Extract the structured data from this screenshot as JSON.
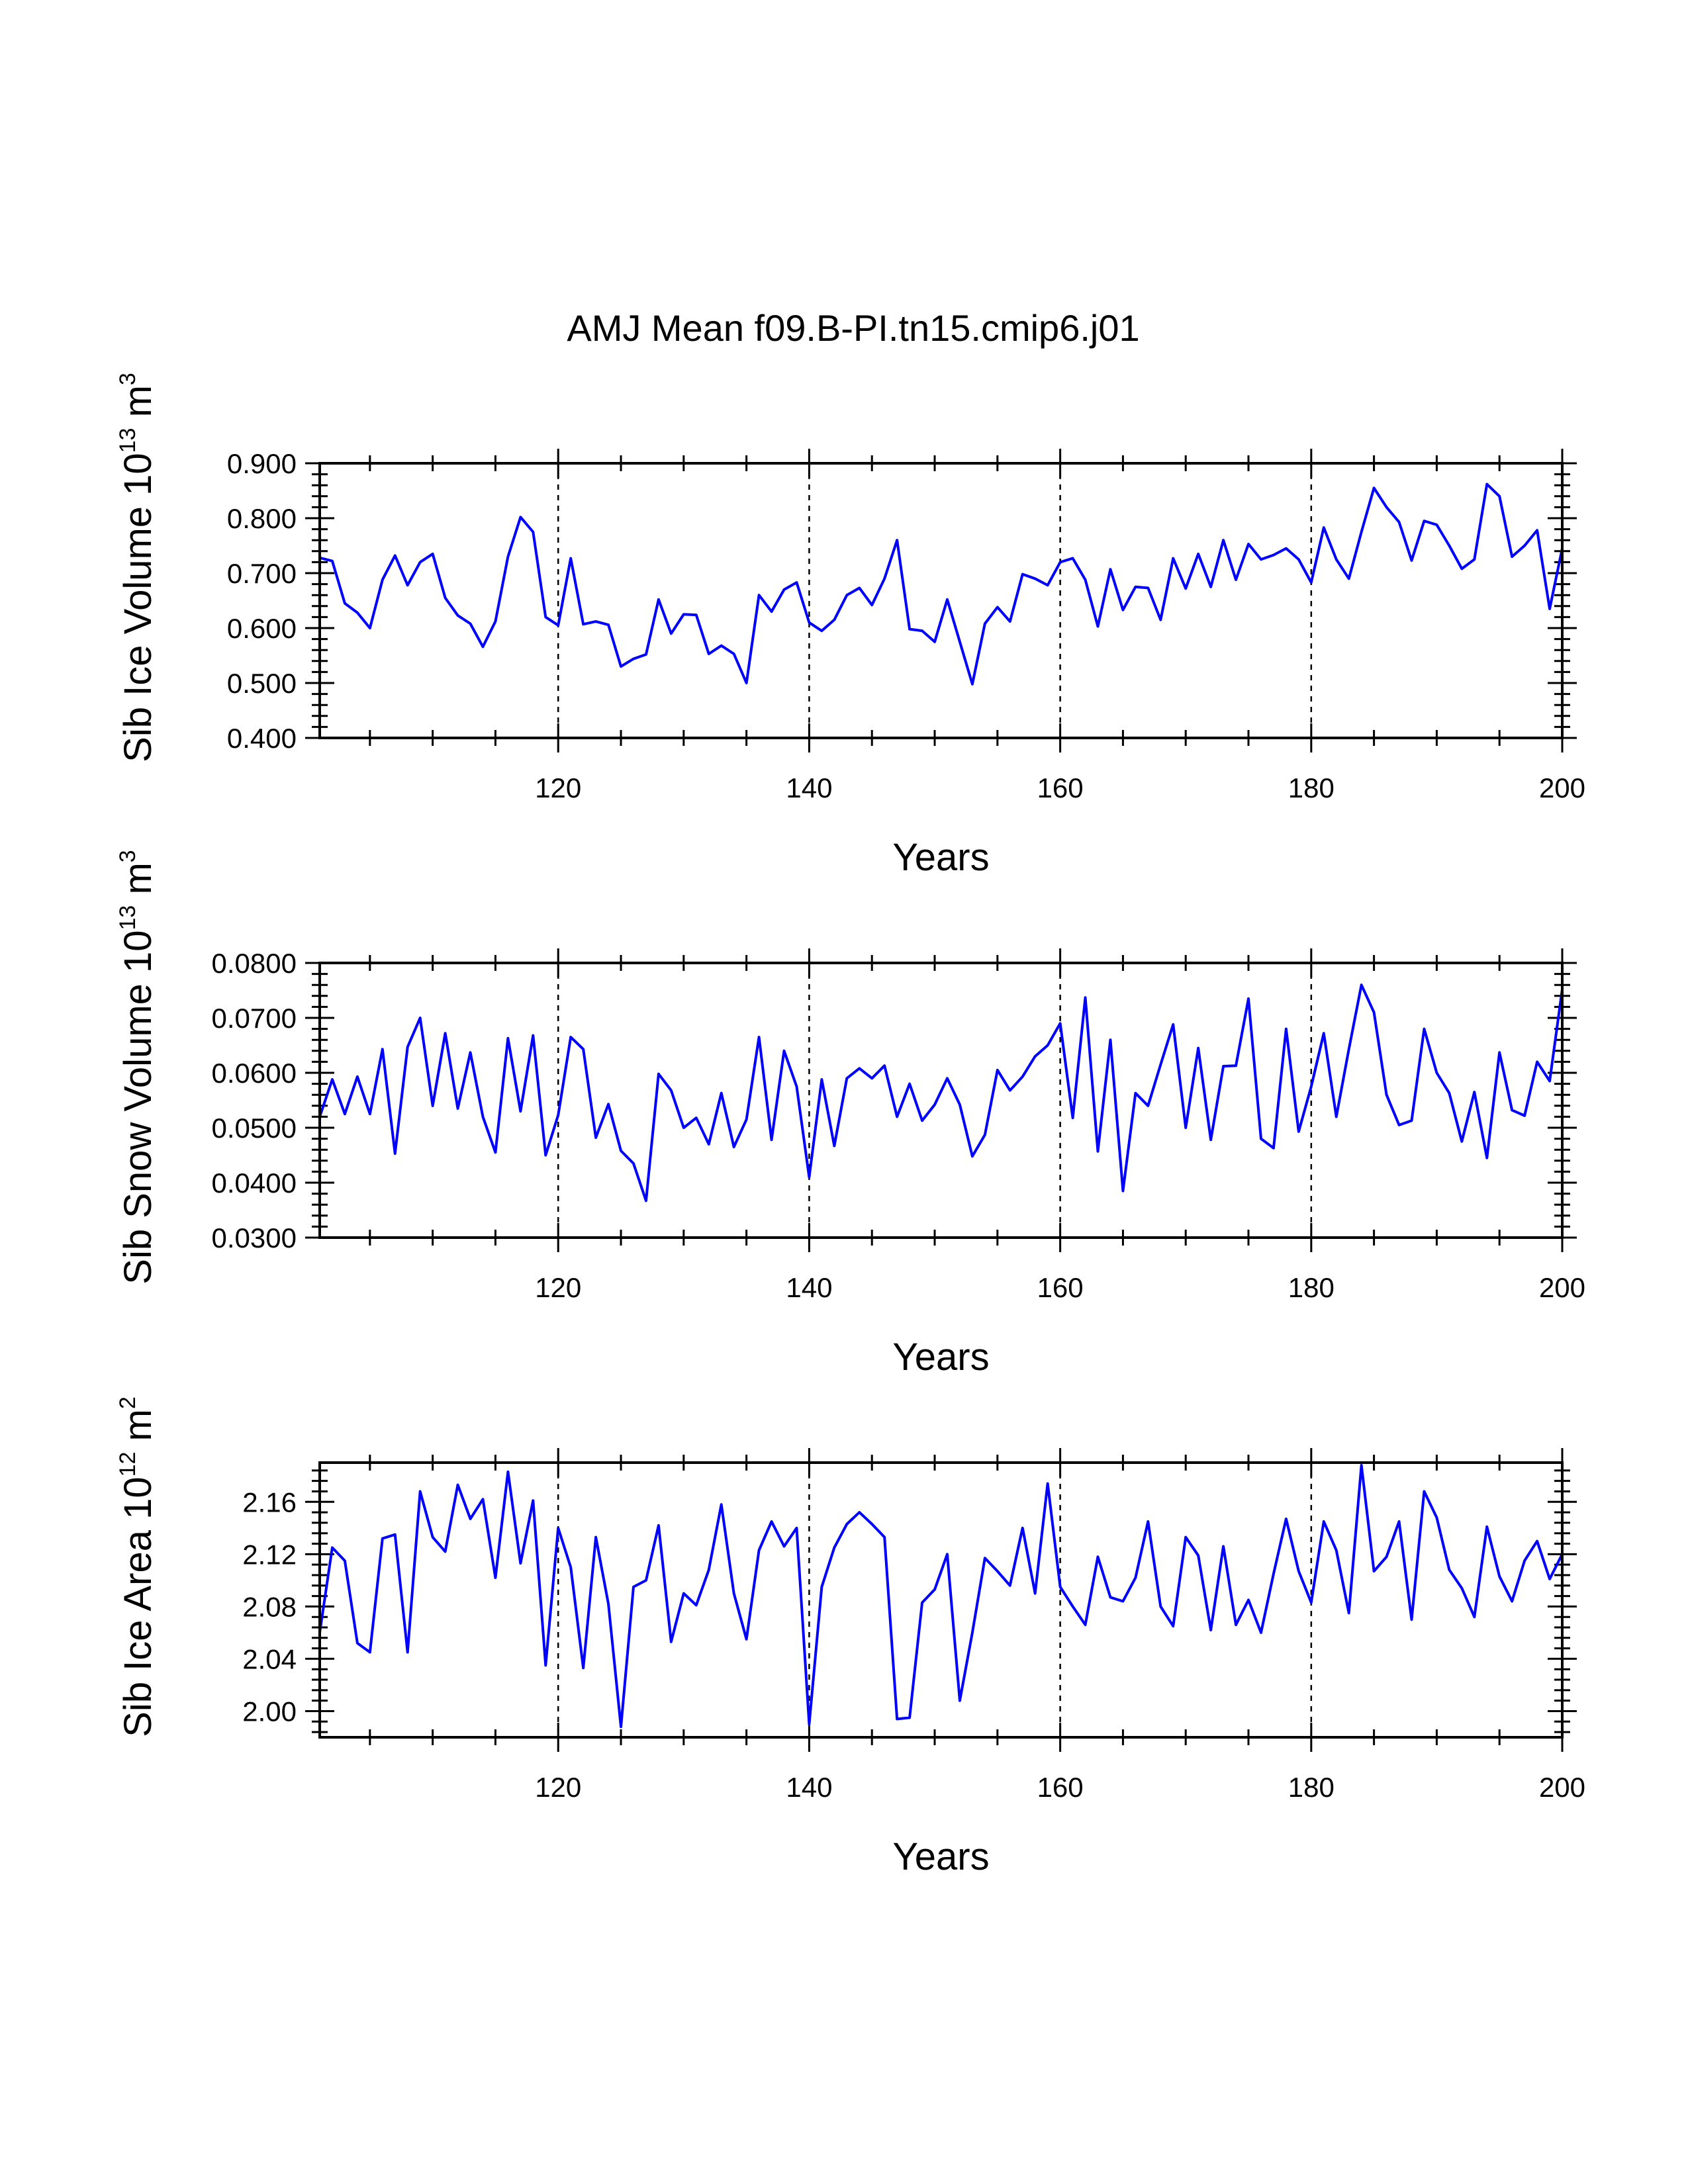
{
  "title": "AMJ Mean f09.B-PI.tn15.cmip6.j01",
  "colors": {
    "series": "#0000ff",
    "axes": "#000000",
    "background": "#ffffff"
  },
  "chart_data": [
    {
      "type": "line",
      "title": "",
      "xlabel": "Years",
      "ylabel": "Sib Ice Volume 10",
      "ylabel_exp": "13",
      "ylabel_unit": "m",
      "ylabel_unit_exp": "3",
      "xlim": [
        101,
        200
      ],
      "ylim": [
        0.4,
        0.9
      ],
      "x_ticks": [
        120,
        140,
        160,
        180,
        200
      ],
      "y_ticks": [
        0.4,
        0.5,
        0.6,
        0.7,
        0.8,
        0.9
      ],
      "y_tick_labels": [
        "0.400",
        "0.500",
        "0.600",
        "0.700",
        "0.800",
        "0.900"
      ],
      "grid_x": [
        120,
        140,
        160,
        180
      ],
      "series": [
        {
          "name": "Sib Ice Volume",
          "x_start": 101,
          "values": [
            0.728,
            0.722,
            0.645,
            0.628,
            0.6,
            0.688,
            0.732,
            0.678,
            0.72,
            0.735,
            0.655,
            0.623,
            0.608,
            0.566,
            0.612,
            0.73,
            0.802,
            0.775,
            0.62,
            0.605,
            0.727,
            0.607,
            0.612,
            0.606,
            0.53,
            0.544,
            0.552,
            0.652,
            0.59,
            0.625,
            0.624,
            0.553,
            0.568,
            0.553,
            0.5,
            0.66,
            0.63,
            0.67,
            0.683,
            0.61,
            0.595,
            0.615,
            0.66,
            0.673,
            0.642,
            0.69,
            0.76,
            0.598,
            0.595,
            0.575,
            0.652,
            0.575,
            0.498,
            0.608,
            0.638,
            0.612,
            0.698,
            0.69,
            0.678,
            0.72,
            0.727,
            0.688,
            0.603,
            0.707,
            0.633,
            0.675,
            0.673,
            0.615,
            0.727,
            0.672,
            0.735,
            0.675,
            0.76,
            0.688,
            0.753,
            0.725,
            0.733,
            0.745,
            0.725,
            0.683,
            0.783,
            0.725,
            0.69,
            0.775,
            0.855,
            0.82,
            0.793,
            0.723,
            0.795,
            0.788,
            0.75,
            0.708,
            0.725,
            0.862,
            0.84,
            0.73,
            0.75,
            0.778,
            0.635,
            0.745
          ]
        }
      ]
    },
    {
      "type": "line",
      "title": "",
      "xlabel": "Years",
      "ylabel": "Sib Snow Volume 10",
      "ylabel_exp": "13",
      "ylabel_unit": "m",
      "ylabel_unit_exp": "3",
      "xlim": [
        101,
        200
      ],
      "ylim": [
        0.03,
        0.08
      ],
      "x_ticks": [
        120,
        140,
        160,
        180,
        200
      ],
      "y_ticks": [
        0.03,
        0.04,
        0.05,
        0.06,
        0.07,
        0.08
      ],
      "y_tick_labels": [
        "0.0300",
        "0.0400",
        "0.0500",
        "0.0600",
        "0.0700",
        "0.0800"
      ],
      "grid_x": [
        120,
        140,
        160,
        180
      ],
      "series": [
        {
          "name": "Sib Snow Volume",
          "x_start": 101,
          "values": [
            0.052,
            0.0588,
            0.0525,
            0.0593,
            0.0525,
            0.0643,
            0.0453,
            0.0647,
            0.07,
            0.054,
            0.0672,
            0.0535,
            0.0637,
            0.052,
            0.0455,
            0.0663,
            0.053,
            0.0668,
            0.045,
            0.0523,
            0.0665,
            0.0643,
            0.0482,
            0.0543,
            0.0458,
            0.0435,
            0.0367,
            0.0598,
            0.0568,
            0.05,
            0.0518,
            0.047,
            0.0563,
            0.0465,
            0.0515,
            0.0665,
            0.0478,
            0.064,
            0.0575,
            0.041,
            0.0588,
            0.0467,
            0.059,
            0.0608,
            0.059,
            0.0613,
            0.052,
            0.058,
            0.0513,
            0.0542,
            0.059,
            0.0542,
            0.0448,
            0.0487,
            0.0605,
            0.0568,
            0.0593,
            0.063,
            0.065,
            0.069,
            0.0518,
            0.0737,
            0.0457,
            0.066,
            0.0385,
            0.0563,
            0.054,
            0.0615,
            0.0688,
            0.05,
            0.0645,
            0.0478,
            0.0612,
            0.0613,
            0.0735,
            0.048,
            0.0463,
            0.068,
            0.0493,
            0.0575,
            0.0672,
            0.052,
            0.0643,
            0.076,
            0.071,
            0.056,
            0.0505,
            0.0513,
            0.068,
            0.06,
            0.0563,
            0.0475,
            0.0565,
            0.0445,
            0.0637,
            0.0532,
            0.0522,
            0.062,
            0.0585,
            0.0752
          ]
        }
      ]
    },
    {
      "type": "line",
      "title": "",
      "xlabel": "Years",
      "ylabel": "Sib Ice Area 10",
      "ylabel_exp": "12",
      "ylabel_unit": "m",
      "ylabel_unit_exp": "2",
      "xlim": [
        101,
        200
      ],
      "ylim": [
        1.98,
        2.19
      ],
      "x_ticks": [
        120,
        140,
        160,
        180,
        200
      ],
      "y_ticks": [
        2.0,
        2.04,
        2.08,
        2.12,
        2.16
      ],
      "y_tick_labels": [
        "2.00",
        "2.04",
        "2.08",
        "2.12",
        "2.16"
      ],
      "grid_x": [
        120,
        140,
        160,
        180
      ],
      "series": [
        {
          "name": "Sib Ice Area",
          "x_start": 101,
          "values": [
            2.06,
            2.125,
            2.115,
            2.052,
            2.045,
            2.132,
            2.135,
            2.045,
            2.168,
            2.133,
            2.122,
            2.173,
            2.147,
            2.162,
            2.102,
            2.183,
            2.113,
            2.161,
            2.035,
            2.14,
            2.11,
            2.033,
            2.133,
            2.082,
            1.988,
            2.095,
            2.1,
            2.142,
            2.053,
            2.09,
            2.081,
            2.108,
            2.158,
            2.09,
            2.055,
            2.123,
            2.145,
            2.126,
            2.14,
            1.99,
            2.095,
            2.125,
            2.143,
            2.152,
            2.143,
            2.133,
            1.994,
            1.995,
            2.083,
            2.093,
            2.12,
            2.008,
            2.06,
            2.117,
            2.107,
            2.096,
            2.14,
            2.09,
            2.174,
            2.095,
            2.08,
            2.066,
            2.118,
            2.087,
            2.084,
            2.102,
            2.145,
            2.08,
            2.065,
            2.133,
            2.119,
            2.062,
            2.126,
            2.066,
            2.085,
            2.06,
            2.105,
            2.147,
            2.107,
            2.083,
            2.145,
            2.123,
            2.075,
            2.188,
            2.107,
            2.118,
            2.145,
            2.07,
            2.168,
            2.148,
            2.108,
            2.094,
            2.072,
            2.141,
            2.103,
            2.084,
            2.115,
            2.13,
            2.101,
            2.12
          ]
        }
      ]
    }
  ]
}
